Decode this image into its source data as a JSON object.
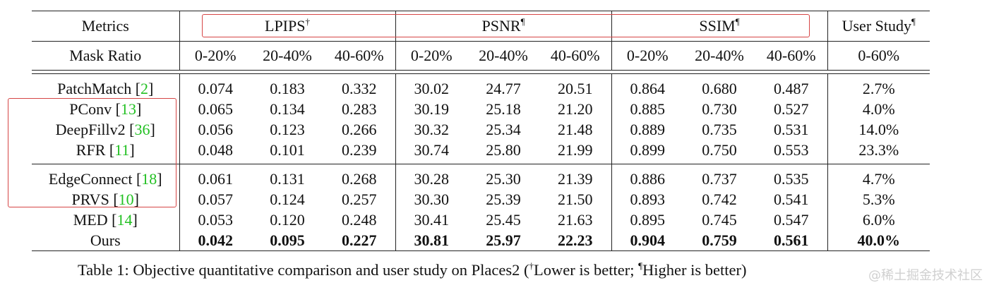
{
  "header": {
    "metrics_label": "Metrics",
    "groups": [
      {
        "label": "LPIPS",
        "mark": "†"
      },
      {
        "label": "PSNR",
        "mark": "¶"
      },
      {
        "label": "SSIM",
        "mark": "¶"
      },
      {
        "label": "User Study",
        "mark": "¶"
      }
    ],
    "mask_ratio_label": "Mask Ratio",
    "ratios": [
      "0-20%",
      "20-40%",
      "40-60%",
      "0-20%",
      "20-40%",
      "40-60%",
      "0-20%",
      "20-40%",
      "40-60%",
      "0-60%"
    ]
  },
  "rows": [
    {
      "name": "PatchMatch",
      "ref": "2",
      "values": [
        "0.074",
        "0.183",
        "0.332",
        "30.02",
        "24.77",
        "20.51",
        "0.864",
        "0.680",
        "0.487",
        "2.7%"
      ]
    },
    {
      "name": "PConv",
      "ref": "13",
      "values": [
        "0.065",
        "0.134",
        "0.283",
        "30.19",
        "25.18",
        "21.20",
        "0.885",
        "0.730",
        "0.527",
        "4.0%"
      ]
    },
    {
      "name": "DeepFillv2",
      "ref": "36",
      "values": [
        "0.056",
        "0.123",
        "0.266",
        "30.32",
        "25.34",
        "21.48",
        "0.889",
        "0.735",
        "0.531",
        "14.0%"
      ]
    },
    {
      "name": "RFR",
      "ref": "11",
      "values": [
        "0.048",
        "0.101",
        "0.239",
        "30.74",
        "25.80",
        "21.99",
        "0.899",
        "0.750",
        "0.553",
        "23.3%"
      ]
    },
    {
      "name": "EdgeConnect",
      "ref": "18",
      "values": [
        "0.061",
        "0.131",
        "0.268",
        "30.28",
        "25.30",
        "21.39",
        "0.886",
        "0.737",
        "0.535",
        "4.7%"
      ]
    },
    {
      "name": "PRVS",
      "ref": "10",
      "values": [
        "0.057",
        "0.124",
        "0.257",
        "30.30",
        "25.39",
        "21.50",
        "0.893",
        "0.742",
        "0.541",
        "5.3%"
      ]
    },
    {
      "name": "MED",
      "ref": "14",
      "values": [
        "0.053",
        "0.120",
        "0.248",
        "30.41",
        "25.45",
        "21.63",
        "0.895",
        "0.745",
        "0.547",
        "6.0%"
      ]
    },
    {
      "name": "Ours",
      "ref": "",
      "values": [
        "0.042",
        "0.095",
        "0.227",
        "30.81",
        "25.97",
        "22.23",
        "0.904",
        "0.759",
        "0.561",
        "40.0%"
      ]
    }
  ],
  "caption": {
    "text": "Table 1: Objective quantitative comparison and user study on Places2 (",
    "mark_lower": "†",
    "lower": "Lower is better; ",
    "mark_higher": "¶",
    "higher": "Higher is better)"
  },
  "watermark": "@稀土掘金技术社区",
  "colors": {
    "reference_link": "#22c022",
    "highlight_box": "#d64545"
  }
}
